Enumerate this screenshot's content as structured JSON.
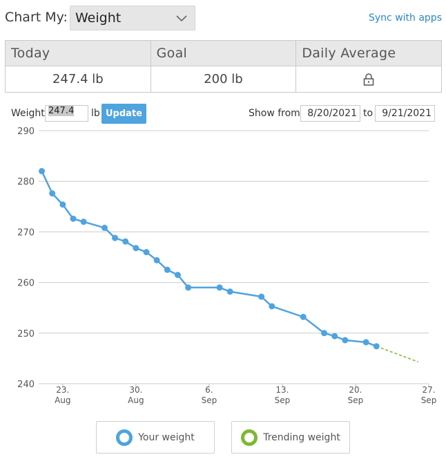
{
  "header": {
    "chart_my_label": "Chart My:",
    "metric_selected": "Weight",
    "sync_link": "Sync with apps"
  },
  "summary": {
    "columns": [
      "Today",
      "Goal",
      "Daily Average"
    ],
    "today_value": "247.4 lb",
    "goal_value": "200 lb",
    "daily_average_locked": true
  },
  "entry": {
    "weight_label": "Weight",
    "weight_value": "247.4",
    "unit_label": "lb",
    "update_label": "Update",
    "show_from_label": "Show from",
    "from_date": "8/20/2021",
    "to_label": "to",
    "to_date": "9/21/2021"
  },
  "legend": {
    "your_weight": "Your weight",
    "trending_weight": "Trending weight"
  },
  "colors": {
    "weight_series": "#4fa3df",
    "trend_series": "#7cb932",
    "grid": "#cccccc",
    "link": "#2a87c9"
  },
  "chart_data": {
    "type": "line",
    "ylim": [
      240,
      290
    ],
    "yticks": [
      240,
      250,
      260,
      270,
      280,
      290
    ],
    "xticks": [
      {
        "date": "2021-08-23",
        "day": "23.",
        "month": "Aug"
      },
      {
        "date": "2021-08-30",
        "day": "30.",
        "month": "Aug"
      },
      {
        "date": "2021-09-06",
        "day": "6.",
        "month": "Sep"
      },
      {
        "date": "2021-09-13",
        "day": "13.",
        "month": "Sep"
      },
      {
        "date": "2021-09-20",
        "day": "20.",
        "month": "Sep"
      },
      {
        "date": "2021-09-27",
        "day": "27.",
        "month": "Sep"
      }
    ],
    "xlim": [
      "2021-08-21",
      "2021-09-27"
    ],
    "series": [
      {
        "name": "Your weight",
        "x": [
          "2021-08-21",
          "2021-08-22",
          "2021-08-23",
          "2021-08-24",
          "2021-08-25",
          "2021-08-27",
          "2021-08-28",
          "2021-08-29",
          "2021-08-30",
          "2021-08-31",
          "2021-09-01",
          "2021-09-02",
          "2021-09-03",
          "2021-09-04",
          "2021-09-07",
          "2021-09-08",
          "2021-09-11",
          "2021-09-12",
          "2021-09-15",
          "2021-09-17",
          "2021-09-18",
          "2021-09-19",
          "2021-09-21",
          "2021-09-22"
        ],
        "y": [
          282.0,
          277.6,
          275.4,
          272.6,
          272.0,
          270.8,
          268.8,
          268.1,
          266.8,
          266.0,
          264.4,
          262.5,
          261.5,
          259.0,
          259.0,
          258.2,
          257.2,
          255.3,
          253.2,
          250.0,
          249.4,
          248.6,
          248.2,
          247.4
        ]
      },
      {
        "name": "Trending weight",
        "x": [
          "2021-09-22",
          "2021-09-26"
        ],
        "y": [
          247.4,
          244.3
        ]
      }
    ]
  }
}
